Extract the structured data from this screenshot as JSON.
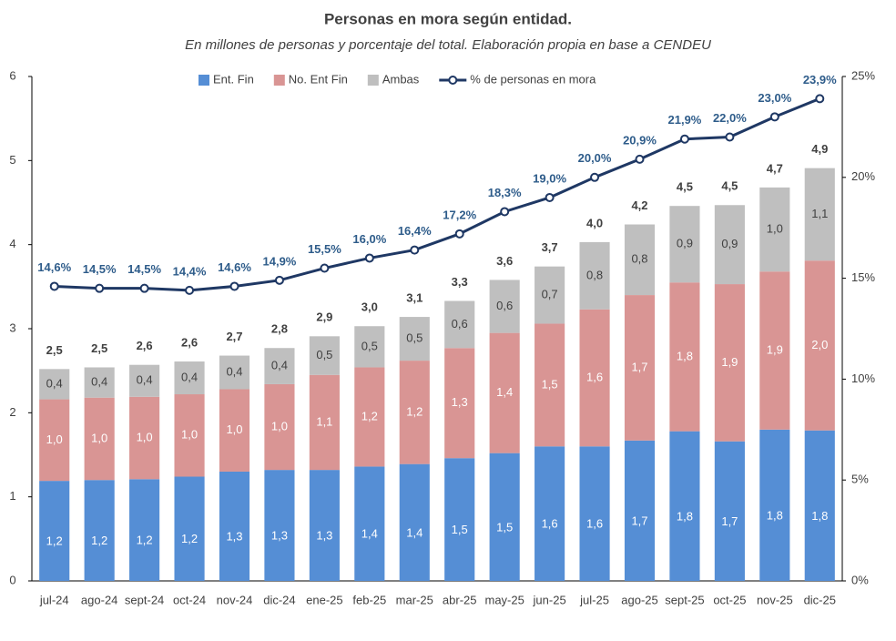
{
  "chart_data": {
    "type": "bar",
    "stacked": true,
    "title": "Personas en mora según entidad.",
    "subtitle": "En millones de personas y porcentaje del total. Elaboración propia en base a CENDEU",
    "categories": [
      "jul-24",
      "ago-24",
      "sept-24",
      "oct-24",
      "nov-24",
      "dic-24",
      "ene-25",
      "feb-25",
      "mar-25",
      "abr-25",
      "may-25",
      "jun-25",
      "jul-25",
      "ago-25",
      "sept-25",
      "oct-25",
      "nov-25",
      "dic-25"
    ],
    "series": [
      {
        "name": "Ent. Fin",
        "color": "#558ed5",
        "values": [
          1.19,
          1.2,
          1.21,
          1.24,
          1.3,
          1.32,
          1.32,
          1.36,
          1.39,
          1.46,
          1.52,
          1.6,
          1.6,
          1.67,
          1.78,
          1.66,
          1.8,
          1.79
        ],
        "value_labels": [
          "1,2",
          "1,2",
          "1,2",
          "1,2",
          "1,3",
          "1,3",
          "1,3",
          "1,4",
          "1,4",
          "1,5",
          "1,5",
          "1,6",
          "1,6",
          "1,7",
          "1,8",
          "1,7",
          "1,8",
          "1,8"
        ]
      },
      {
        "name": "No. Ent Fin",
        "color": "#d99594",
        "values": [
          0.97,
          0.98,
          0.98,
          0.98,
          0.98,
          1.02,
          1.13,
          1.18,
          1.23,
          1.31,
          1.43,
          1.46,
          1.63,
          1.73,
          1.77,
          1.87,
          1.88,
          2.02
        ],
        "value_labels": [
          "1,0",
          "1,0",
          "1,0",
          "1,0",
          "1,0",
          "1,0",
          "1,1",
          "1,2",
          "1,2",
          "1,3",
          "1,4",
          "1,5",
          "1,6",
          "1,7",
          "1,8",
          "1,9",
          "1,9",
          "2,0"
        ]
      },
      {
        "name": "Ambas",
        "color": "#bfbfbf",
        "values": [
          0.36,
          0.36,
          0.38,
          0.39,
          0.4,
          0.43,
          0.46,
          0.49,
          0.52,
          0.56,
          0.63,
          0.68,
          0.8,
          0.84,
          0.91,
          0.94,
          1.0,
          1.1
        ],
        "value_labels": [
          "0,4",
          "0,4",
          "0,4",
          "0,4",
          "0,4",
          "0,4",
          "0,5",
          "0,5",
          "0,5",
          "0,6",
          "0,6",
          "0,7",
          "0,8",
          "0,8",
          "0,9",
          "0,9",
          "1,0",
          "1,1"
        ]
      },
      {
        "name": "% de personas en mora",
        "type": "line",
        "axis": "y2",
        "color": "#1f3864",
        "values": [
          14.6,
          14.5,
          14.5,
          14.4,
          14.6,
          14.9,
          15.5,
          16.0,
          16.4,
          17.2,
          18.3,
          19.0,
          20.0,
          20.9,
          21.9,
          22.0,
          23.0,
          23.9
        ],
        "value_labels": [
          "14,6%",
          "14,5%",
          "14,5%",
          "14,4%",
          "14,6%",
          "14,9%",
          "15,5%",
          "16,0%",
          "16,4%",
          "17,2%",
          "18,3%",
          "19,0%",
          "20,0%",
          "20,9%",
          "21,9%",
          "22,0%",
          "23,0%",
          "23,9%"
        ]
      }
    ],
    "total_labels": [
      "2,5",
      "2,5",
      "2,6",
      "2,6",
      "2,7",
      "2,8",
      "2,9",
      "3,0",
      "3,1",
      "3,3",
      "3,6",
      "3,7",
      "4,0",
      "4,2",
      "4,5",
      "4,5",
      "4,7",
      "4,9"
    ],
    "ylim": [
      0,
      6
    ],
    "yticks": [
      0,
      1,
      2,
      3,
      4,
      5,
      6
    ],
    "y2lim": [
      0,
      25
    ],
    "y2ticks": [
      {
        "value": 0,
        "label": "0%"
      },
      {
        "value": 5,
        "label": "5%"
      },
      {
        "value": 10,
        "label": "10%"
      },
      {
        "value": 15,
        "label": "15%"
      },
      {
        "value": 20,
        "label": "20%"
      },
      {
        "value": 25,
        "label": "25%"
      }
    ],
    "grid": false,
    "legend": "top"
  }
}
